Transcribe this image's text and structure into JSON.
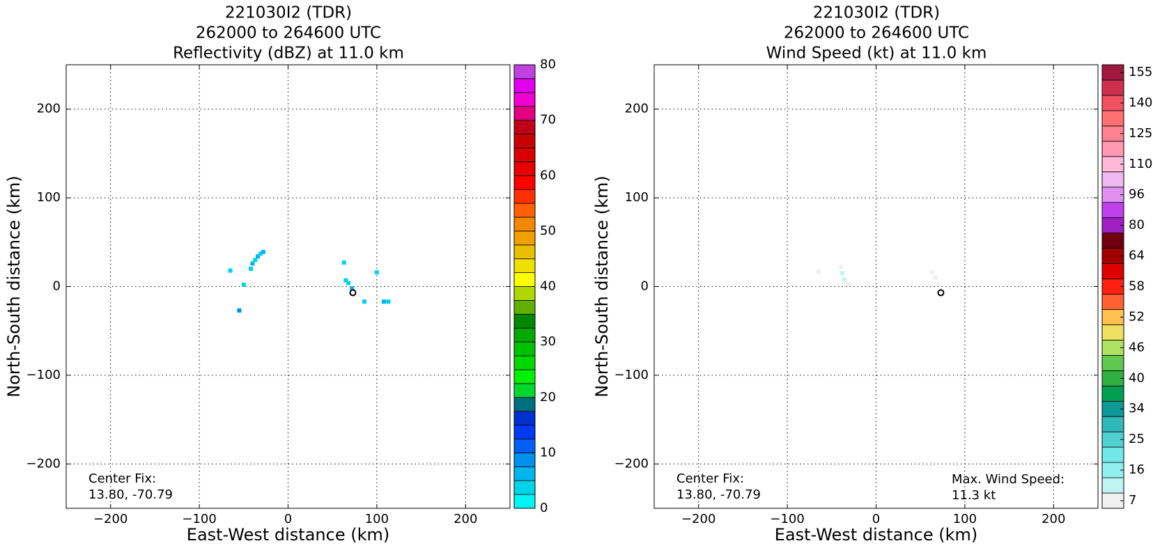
{
  "chart_data": [
    {
      "type": "heatmap",
      "title": [
        "221030I2 (TDR)",
        "262000 to 264600 UTC",
        "Reflectivity (dBZ) at 11.0 km"
      ],
      "x_label": "East-West distance (km)",
      "y_label": "North-South distance (km)",
      "xlim": [
        -250,
        250
      ],
      "ylim": [
        -250,
        250
      ],
      "xticks": [
        {
          "value": -200,
          "label": "−200"
        },
        {
          "value": -100,
          "label": "−100"
        },
        0,
        100,
        200
      ],
      "yticks": [
        {
          "value": -200,
          "label": "−200"
        },
        {
          "value": -100,
          "label": "−100"
        },
        0,
        100,
        200
      ],
      "grid": true,
      "echoes": {
        "x": [
          -65,
          -42,
          -40,
          -37,
          -34,
          -31,
          -28,
          -50,
          -55,
          63,
          65,
          68,
          72,
          100,
          86,
          108,
          113
        ],
        "y": [
          18,
          20,
          26,
          30,
          34,
          37,
          39,
          2,
          -27,
          27,
          7,
          4,
          -2,
          16,
          -17,
          -17,
          -17
        ],
        "values": [
          4,
          4,
          5,
          4,
          5,
          4,
          6,
          3,
          9,
          3,
          4,
          3,
          5,
          4,
          3,
          5,
          4
        ]
      },
      "center_marker": {
        "x": 73,
        "y": -7
      },
      "annotations": [
        "Center Fix:",
        "13.80, -70.79"
      ],
      "colorbar": {
        "scale": "linear",
        "lim": [
          0,
          80
        ],
        "ticks": [
          0,
          10,
          20,
          30,
          40,
          50,
          60,
          70,
          80
        ],
        "colors": [
          "#00f4f4",
          "#00d4e8",
          "#00b4f0",
          "#0090f0",
          "#0060f4",
          "#0038f4",
          "#0030d0",
          "#007080",
          "#00d830",
          "#00f000",
          "#00d800",
          "#00c000",
          "#00a800",
          "#008800",
          "#60b000",
          "#b0d800",
          "#ffff00",
          "#f0e000",
          "#e8c000",
          "#f0a000",
          "#f08800",
          "#ff6000",
          "#ff3000",
          "#ff0000",
          "#e80000",
          "#d80000",
          "#c80000",
          "#c00018",
          "#e00080",
          "#f000d0",
          "#e000f0",
          "#c040e0"
        ]
      }
    },
    {
      "type": "heatmap",
      "title": [
        "221030I2 (TDR)",
        "262000 to 264600 UTC",
        "Wind Speed (kt) at 11.0 km"
      ],
      "x_label": "East-West distance (km)",
      "y_label": "North-South distance (km)",
      "xlim": [
        -250,
        250
      ],
      "ylim": [
        -250,
        250
      ],
      "xticks": [
        {
          "value": -200,
          "label": "−200"
        },
        {
          "value": -100,
          "label": "−100"
        },
        0,
        100,
        200
      ],
      "yticks": [
        {
          "value": -200,
          "label": "−200"
        },
        {
          "value": -100,
          "label": "−100"
        },
        0,
        100,
        200
      ],
      "grid": true,
      "echoes": {
        "x": [
          -65,
          -40,
          -38,
          -36,
          -34,
          -30,
          63,
          67,
          70
        ],
        "y": [
          17,
          22,
          15,
          8,
          3,
          3,
          16,
          10,
          3
        ],
        "values": [
          8,
          9,
          10,
          10,
          9,
          8,
          5,
          4,
          3
        ]
      },
      "center_marker": {
        "x": 73,
        "y": -7
      },
      "annotations": [
        "Center Fix:",
        "13.80, -70.79",
        "Max. Wind Speed:",
        "11.3 kt"
      ],
      "colorbar": {
        "scale": "stepped",
        "ticks": [
          7,
          16,
          25,
          34,
          40,
          46,
          52,
          58,
          64,
          80,
          96,
          110,
          125,
          140,
          155
        ],
        "colors": [
          "#f0f0f0",
          "#c0f4f4",
          "#90f0f0",
          "#70e8e8",
          "#50d0d0",
          "#30b8b8",
          "#109898",
          "#00a050",
          "#30b040",
          "#60c850",
          "#b0e060",
          "#f0e060",
          "#ffc050",
          "#ff6030",
          "#ff2010",
          "#e00000",
          "#a00000",
          "#700010",
          "#a020c0",
          "#c040f0",
          "#e090f0",
          "#f0b8f0",
          "#ffb8d8",
          "#ff98b0",
          "#ff8090",
          "#ff7070",
          "#f05060",
          "#d03050",
          "#a01840"
        ]
      }
    }
  ]
}
